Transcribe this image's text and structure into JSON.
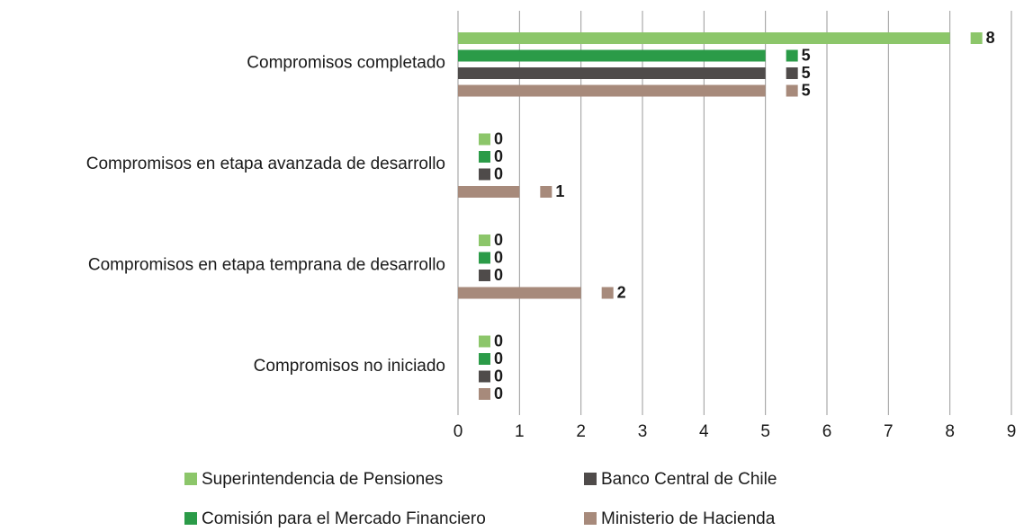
{
  "chart_data": {
    "type": "bar",
    "orientation": "horizontal",
    "categories": [
      "Compromisos completado",
      "Compromisos en etapa avanzada de desarrollo",
      "Compromisos en etapa temprana de desarrollo",
      "Compromisos no iniciado"
    ],
    "series": [
      {
        "name": "Superintendencia de Pensiones",
        "color": "#8cc66a",
        "values": [
          8,
          0,
          0,
          0
        ]
      },
      {
        "name": "Comisión para el Mercado Financiero",
        "color": "#2b9b48",
        "values": [
          5,
          0,
          0,
          0
        ]
      },
      {
        "name": "Banco Central de Chile",
        "color": "#4f4b4a",
        "values": [
          5,
          0,
          0,
          0
        ]
      },
      {
        "name": "Ministerio de Hacienda",
        "color": "#a78a7b",
        "values": [
          5,
          1,
          2,
          0
        ]
      }
    ],
    "xlim": [
      0,
      9
    ],
    "xticks": [
      0,
      1,
      2,
      3,
      4,
      5,
      6,
      7,
      8,
      9
    ],
    "grid": true
  }
}
